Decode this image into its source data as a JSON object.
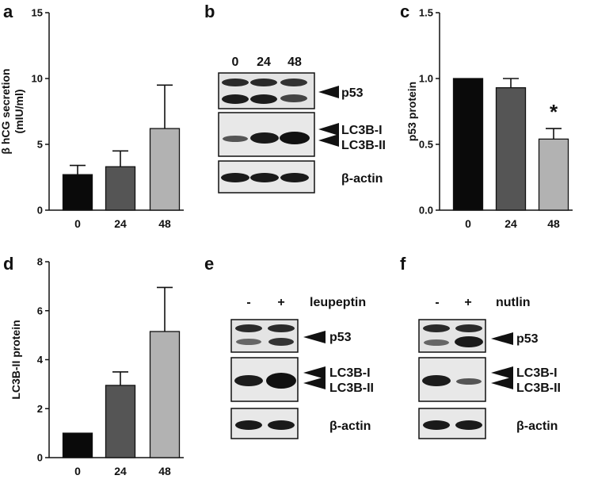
{
  "figure": {
    "panel_letters": [
      "a",
      "b",
      "c",
      "d",
      "e",
      "f"
    ]
  },
  "colors": {
    "bar_0": "#0a0a0a",
    "bar_24": "#555555",
    "bar_48": "#b2b2b2",
    "blot_bg": "#e6e6e6",
    "band": "#202020"
  },
  "chart_data": [
    {
      "id": "a",
      "type": "bar",
      "categories": [
        "0",
        "24",
        "48"
      ],
      "values": [
        2.7,
        3.3,
        6.2
      ],
      "errors": [
        0.7,
        1.2,
        3.3
      ],
      "ylabel_line1": "β hCG secretion",
      "ylabel_line2": "(mIU/ml)",
      "ylim": [
        0,
        15
      ],
      "yticks": [
        "0",
        "5",
        "10",
        "15"
      ],
      "annotations": []
    },
    {
      "id": "c",
      "type": "bar",
      "categories": [
        "0",
        "24",
        "48"
      ],
      "values": [
        1.0,
        0.93,
        0.54
      ],
      "errors": [
        0,
        0.07,
        0.08
      ],
      "ylabel_line1": "p53 protein",
      "ylabel_line2": "",
      "ylim": [
        0,
        1.5
      ],
      "yticks": [
        "0.0",
        "0.5",
        "1.0",
        "1.5"
      ],
      "annotations": [
        "*"
      ]
    },
    {
      "id": "d",
      "type": "bar",
      "categories": [
        "0",
        "24",
        "48"
      ],
      "values": [
        1.0,
        2.95,
        5.15
      ],
      "errors": [
        0,
        0.55,
        1.8
      ],
      "ylabel_line1": "LC3B-II protein",
      "ylabel_line2": "",
      "ylim": [
        0,
        8
      ],
      "yticks": [
        "0",
        "2",
        "4",
        "6",
        "8"
      ],
      "annotations": []
    }
  ],
  "blots": {
    "b": {
      "lanes": [
        "0",
        "24",
        "48"
      ],
      "labels": {
        "p53": "p53",
        "lc3b_i": "LC3B-I",
        "lc3b_ii": "LC3B-II",
        "actin": "β-actin"
      }
    },
    "e": {
      "lanes": [
        "-",
        "+"
      ],
      "treatment": "leupeptin",
      "labels": {
        "p53": "p53",
        "lc3b_i": "LC3B-I",
        "lc3b_ii": "LC3B-II",
        "actin": "β-actin"
      }
    },
    "f": {
      "lanes": [
        "-",
        "+"
      ],
      "treatment": "nutlin",
      "labels": {
        "p53": "p53",
        "lc3b_i": "LC3B-I",
        "lc3b_ii": "LC3B-II",
        "actin": "β-actin"
      }
    }
  }
}
